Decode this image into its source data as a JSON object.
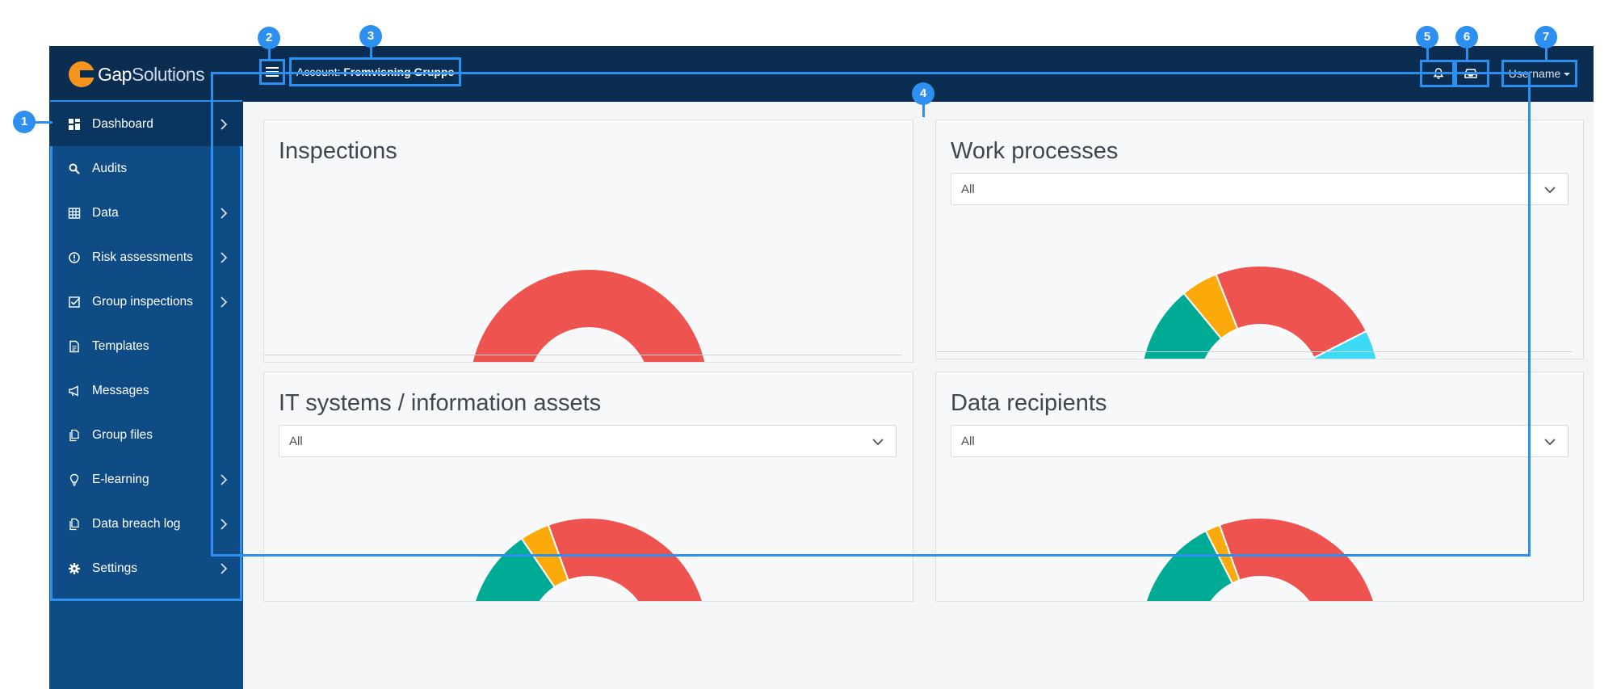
{
  "brand": {
    "name_bold": "Gap",
    "name_light": "Solutions"
  },
  "header": {
    "account_label": "Account:",
    "account_name": "Fremvisning Gruppe",
    "username": "Username"
  },
  "sidebar": {
    "items": [
      {
        "label": "Dashboard",
        "icon": "dashboard-icon",
        "has_chevron": true,
        "active": true
      },
      {
        "label": "Audits",
        "icon": "search-icon",
        "has_chevron": false
      },
      {
        "label": "Data",
        "icon": "table-icon",
        "has_chevron": true
      },
      {
        "label": "Risk assessments",
        "icon": "alert-circle-icon",
        "has_chevron": true
      },
      {
        "label": "Group inspections",
        "icon": "checkbox-icon",
        "has_chevron": true
      },
      {
        "label": "Templates",
        "icon": "document-icon",
        "has_chevron": false
      },
      {
        "label": "Messages",
        "icon": "megaphone-icon",
        "has_chevron": false
      },
      {
        "label": "Group files",
        "icon": "files-icon",
        "has_chevron": false
      },
      {
        "label": "E-learning",
        "icon": "lightbulb-icon",
        "has_chevron": true
      },
      {
        "label": "Data breach log",
        "icon": "files-icon",
        "has_chevron": true
      },
      {
        "label": "Settings",
        "icon": "gear-icon",
        "has_chevron": true
      }
    ]
  },
  "panels": {
    "inspections": {
      "title": "Inspections"
    },
    "work_processes": {
      "title": "Work processes",
      "filter": "All"
    },
    "it_systems": {
      "title": "IT systems / information assets",
      "filter": "All"
    },
    "data_recipients": {
      "title": "Data recipients",
      "filter": "All"
    }
  },
  "annotations": [
    "1",
    "2",
    "3",
    "4",
    "5",
    "6",
    "7"
  ],
  "colors": {
    "green": "#00ab96",
    "orange": "#fcaa0a",
    "red": "#ef5350",
    "cyan": "#3cdaf5",
    "annotation": "#2d8ff0"
  },
  "chart_data": [
    {
      "type": "pie",
      "title": "Inspections",
      "half_donut": true,
      "values": [
        3,
        97
      ],
      "colors": [
        "#00ab96",
        "#ef5350"
      ]
    },
    {
      "type": "pie",
      "title": "Work processes",
      "half_donut": true,
      "values": [
        28,
        10,
        47,
        15
      ],
      "colors": [
        "#00ab96",
        "#fcaa0a",
        "#ef5350",
        "#3cdaf5"
      ]
    },
    {
      "type": "pie",
      "title": "IT systems / information assets",
      "half_donut": true,
      "values": [
        31,
        8,
        61
      ],
      "colors": [
        "#00ab96",
        "#fcaa0a",
        "#ef5350"
      ]
    },
    {
      "type": "pie",
      "title": "Data recipients",
      "half_donut": true,
      "values": [
        35,
        4,
        61
      ],
      "colors": [
        "#00ab96",
        "#fcaa0a",
        "#ef5350"
      ]
    }
  ]
}
